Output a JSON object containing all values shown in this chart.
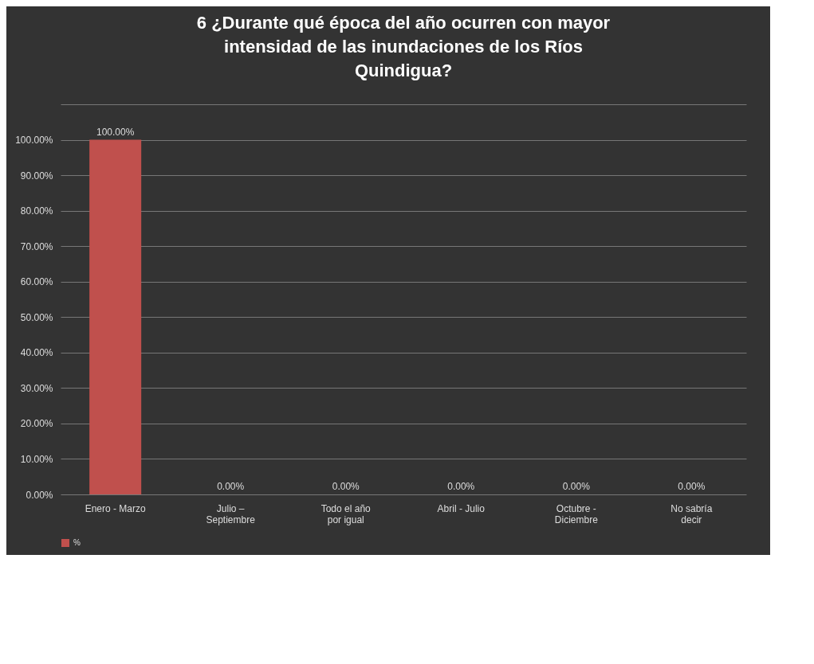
{
  "chart_data": {
    "type": "bar",
    "title": "6 ¿Durante qué época del año ocurren con mayor intensidad de las inundaciones de los Ríos Quindigua?",
    "categories": [
      "Enero - Marzo",
      "Julio – Septiembre",
      "Todo el año por igual",
      "Abril - Julio",
      "Octubre - Diciembre",
      "No sabría decir"
    ],
    "series": [
      {
        "name": "%",
        "color": "#c0504d",
        "values": [
          100,
          0,
          0,
          0,
          0,
          0
        ],
        "value_labels": [
          "100.00%",
          "0.00%",
          "0.00%",
          "0.00%",
          "0.00%",
          "0.00%"
        ]
      }
    ],
    "ylim": [
      0,
      110
    ],
    "yticks": [
      {
        "value": 0,
        "label": "0.00%"
      },
      {
        "value": 10,
        "label": "10.00%"
      },
      {
        "value": 20,
        "label": "20.00%"
      },
      {
        "value": 30,
        "label": "30.00%"
      },
      {
        "value": 40,
        "label": "40.00%"
      },
      {
        "value": 50,
        "label": "50.00%"
      },
      {
        "value": 60,
        "label": "60.00%"
      },
      {
        "value": 70,
        "label": "70.00%"
      },
      {
        "value": 80,
        "label": "80.00%"
      },
      {
        "value": 90,
        "label": "90.00%"
      },
      {
        "value": 100,
        "label": "100.00%"
      },
      {
        "value": 110,
        "label": null
      }
    ],
    "grid": "y",
    "legend": "bottom"
  }
}
